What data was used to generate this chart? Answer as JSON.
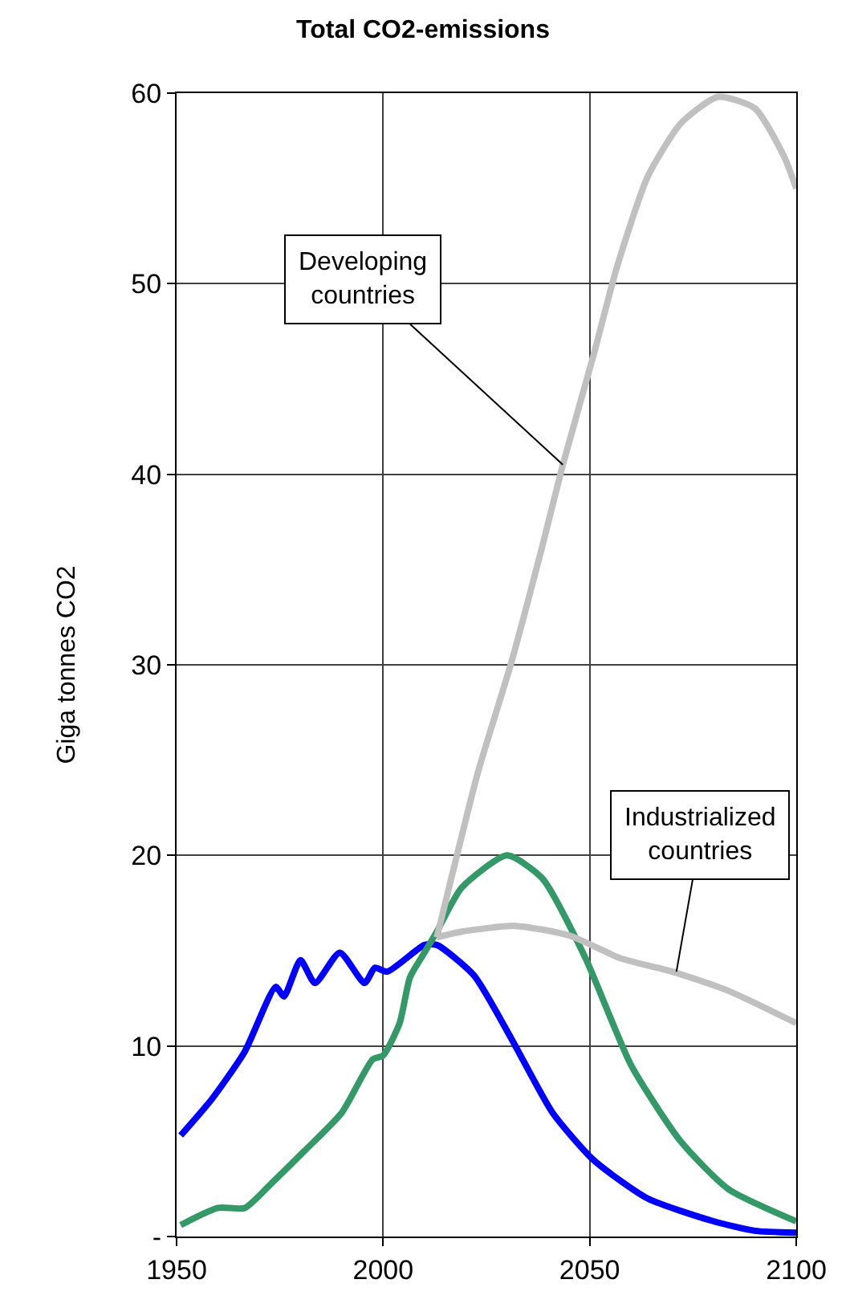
{
  "chart_data": {
    "type": "line",
    "title": "Total CO2-emissions",
    "ylabel": "Giga tonnes CO2",
    "xlim": [
      1950,
      2100
    ],
    "xticks": [
      1950,
      2000,
      2050,
      2100
    ],
    "ylim": [
      0,
      60
    ],
    "yticks": [
      {
        "value": 0,
        "label": "-"
      },
      10,
      20,
      30,
      40,
      50,
      60
    ],
    "grid": true,
    "marker": "none",
    "line_style": "solid",
    "series": [
      {
        "color": "#0000ff",
        "x": [
          1951,
          1958.5,
          1966.5,
          1974,
          1976,
          1980,
          1983.5,
          1989.5,
          1995.5,
          1998,
          2001,
          2010,
          2013,
          2022,
          2031,
          2041,
          2051,
          2064,
          2080,
          2090,
          2100
        ],
        "values": [
          5.3,
          7.2,
          9.7,
          13.1,
          12.6,
          14.5,
          13.3,
          14.9,
          13.3,
          14.1,
          13.9,
          15.3,
          15.3,
          13.7,
          10.4,
          6.5,
          4.0,
          2.0,
          0.8,
          0.3,
          0.2
        ]
      },
      {
        "color": "#339966",
        "x": [
          1951,
          1960,
          1966.5,
          1973,
          1981,
          1990,
          1997.5,
          2000,
          2004,
          2006.5,
          2010,
          2013,
          2019,
          2030,
          2038.5,
          2049,
          2060,
          2072,
          2083.5,
          2100
        ],
        "values": [
          0.6,
          1.5,
          1.5,
          2.8,
          4.5,
          6.5,
          9.3,
          9.5,
          11.2,
          13.6,
          14.9,
          16.0,
          18.3,
          20.0,
          18.8,
          14.6,
          9.0,
          5.0,
          2.5,
          0.8
        ]
      },
      {
        "color": "#c0c0c0",
        "x": [
          2013,
          2016.5,
          2023,
          2031,
          2038.5,
          2043.5,
          2051,
          2056.5,
          2064,
          2072,
          2081,
          2090,
          2097,
          2100
        ],
        "values": [
          15.7,
          18.8,
          24.4,
          30.1,
          36.2,
          40.5,
          46.3,
          50.8,
          55.6,
          58.4,
          59.8,
          59.2,
          56.7,
          55.0
        ]
      },
      {
        "color": "#c0c0c0",
        "x": [
          2013,
          2019,
          2032,
          2045,
          2057.5,
          2070,
          2083.5,
          2100
        ],
        "values": [
          15.7,
          16.0,
          16.3,
          15.8,
          14.6,
          13.9,
          12.9,
          11.2
        ]
      }
    ],
    "annotations": [
      {
        "text": "Developing\ncountries",
        "x": 2043.5,
        "y": 40.5
      },
      {
        "text": "Industrialized\ncountries",
        "x": 2071,
        "y": 13.9
      }
    ]
  }
}
